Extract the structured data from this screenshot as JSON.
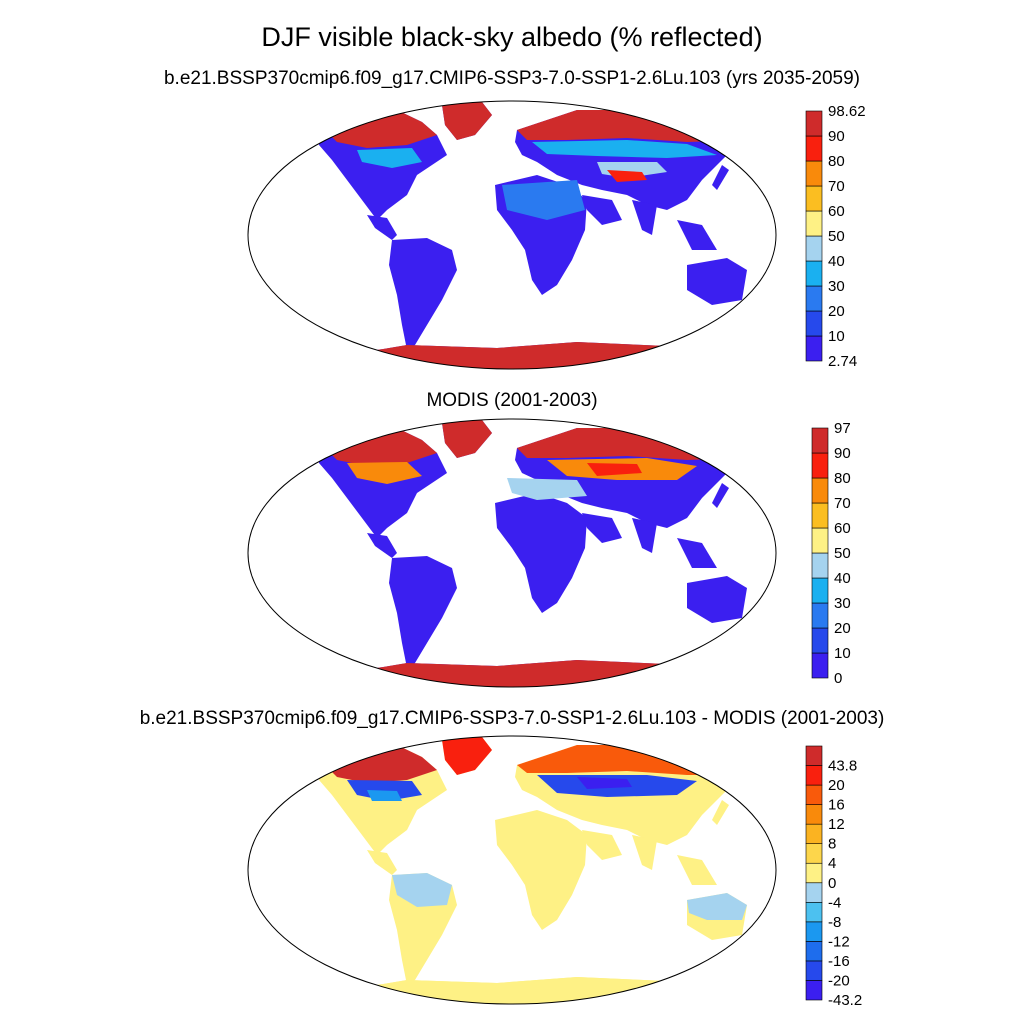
{
  "figure": {
    "title": "DJF visible black-sky albedo (% reflected)"
  },
  "panels": [
    {
      "title": "b.e21.BSSP370cmip6.f09_g17.CMIP6-SSP3-7.0-SSP1-2.6Lu.103 (yrs 2035-2059)",
      "colorbar": {
        "labels": [
          "2.74",
          "10",
          "20",
          "30",
          "40",
          "50",
          "60",
          "70",
          "80",
          "90",
          "98.62"
        ],
        "colors": [
          "#3b1ff0",
          "#2649ec",
          "#2a7af0",
          "#1ab0f0",
          "#a5d3ef",
          "#fef185",
          "#fbbe21",
          "#f98a0b",
          "#f9200e",
          "#cf2b2b"
        ]
      }
    },
    {
      "title": "MODIS (2001-2003)",
      "colorbar": {
        "labels": [
          "0",
          "10",
          "20",
          "30",
          "40",
          "50",
          "60",
          "70",
          "80",
          "90",
          "97"
        ],
        "colors": [
          "#3b1ff0",
          "#2649ec",
          "#2a7af0",
          "#1ab0f0",
          "#a5d3ef",
          "#fef185",
          "#fbbe21",
          "#f98a0b",
          "#f9200e",
          "#cf2b2b"
        ]
      }
    },
    {
      "title": "b.e21.BSSP370cmip6.f09_g17.CMIP6-SSP3-7.0-SSP1-2.6Lu.103 - MODIS (2001-2003)",
      "colorbar": {
        "labels": [
          "-43.2",
          "-20",
          "-16",
          "-12",
          "-8",
          "-4",
          "0",
          "4",
          "8",
          "12",
          "16",
          "20",
          "43.8"
        ],
        "colors": [
          "#3b1ff0",
          "#2649ec",
          "#1e6ded",
          "#1b98f0",
          "#4cc1f0",
          "#a5d3ef",
          "#fef185",
          "#fdd64b",
          "#fbb321",
          "#f98a0b",
          "#f95a0b",
          "#f9200e",
          "#cf2b2b"
        ]
      }
    }
  ]
}
